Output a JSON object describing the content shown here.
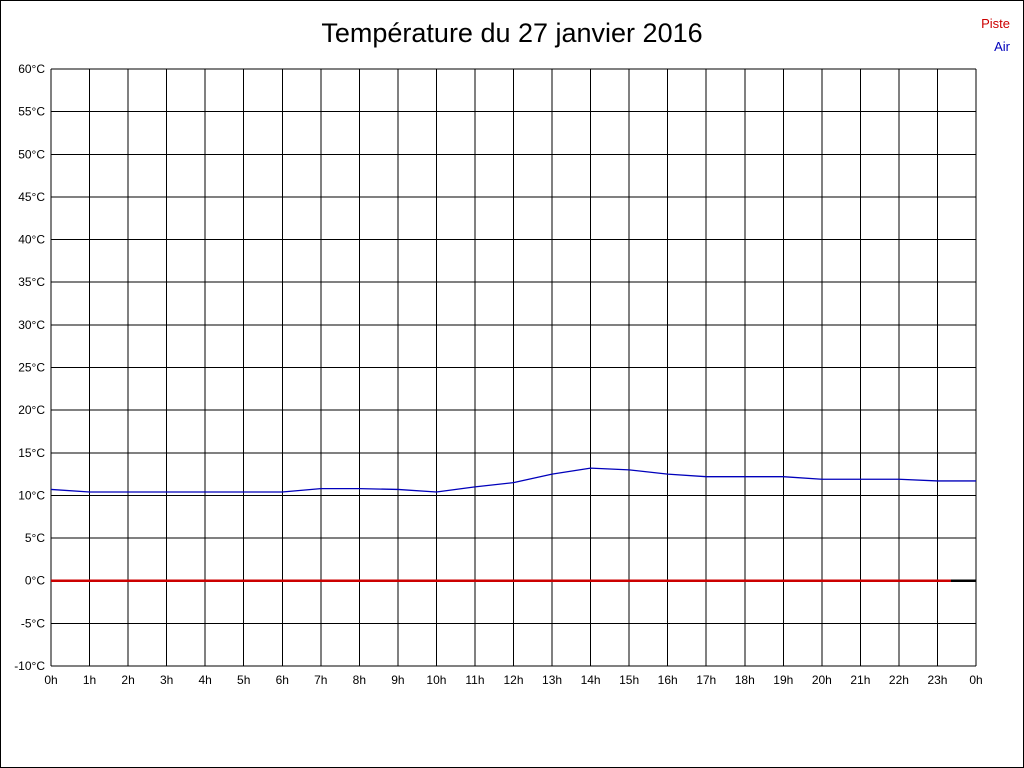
{
  "chart_data": {
    "type": "line",
    "title": "Température du 27 janvier 2016",
    "xlabel": "",
    "ylabel": "",
    "xlim": [
      0,
      24
    ],
    "ylim": [
      -10,
      60
    ],
    "y_tick_step": 5,
    "grid": true,
    "legend_position": "top-right",
    "x": [
      0,
      1,
      2,
      3,
      4,
      5,
      6,
      7,
      8,
      9,
      10,
      11,
      12,
      13,
      14,
      15,
      16,
      17,
      18,
      19,
      20,
      21,
      22,
      23,
      24
    ],
    "x_tick_labels": [
      "0h",
      "1h",
      "2h",
      "3h",
      "4h",
      "5h",
      "6h",
      "7h",
      "8h",
      "9h",
      "10h",
      "11h",
      "12h",
      "13h",
      "14h",
      "15h",
      "16h",
      "17h",
      "18h",
      "19h",
      "20h",
      "21h",
      "22h",
      "23h",
      "0h"
    ],
    "y_tick_labels": [
      "-10°C",
      "-5°C",
      "0°C",
      "5°C",
      "10°C",
      "15°C",
      "20°C",
      "25°C",
      "30°C",
      "35°C",
      "40°C",
      "45°C",
      "50°C",
      "55°C",
      "60°C"
    ],
    "series": [
      {
        "name": "Piste",
        "color": "#cc0000",
        "width": 2.5,
        "values": [
          0,
          0,
          0,
          0,
          0,
          0,
          0,
          0,
          0,
          0,
          0,
          0,
          0,
          0,
          0,
          0,
          0,
          0,
          0,
          0,
          0,
          0,
          0,
          0,
          0
        ]
      },
      {
        "name": "Air",
        "color": "#0000bb",
        "width": 1.3,
        "values": [
          10.7,
          10.4,
          10.4,
          10.4,
          10.4,
          10.4,
          10.4,
          10.8,
          10.8,
          10.7,
          10.4,
          11.0,
          11.5,
          12.5,
          13.2,
          13.0,
          12.5,
          12.2,
          12.2,
          12.2,
          11.9,
          11.9,
          11.9,
          11.7,
          11.7
        ]
      }
    ],
    "annotations": [
      {
        "type": "segment",
        "color": "#000000",
        "width": 2.5,
        "y": 0,
        "x_from": 23.35,
        "x_to": 24
      }
    ]
  }
}
